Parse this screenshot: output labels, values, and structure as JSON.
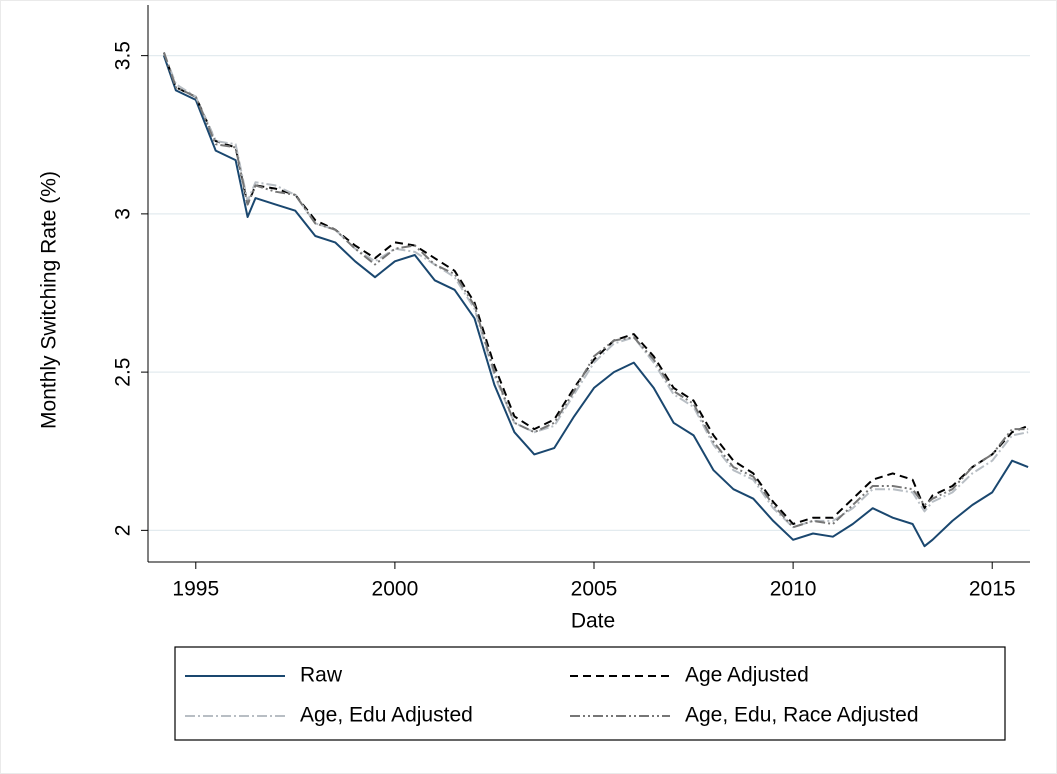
{
  "chart_data": {
    "type": "line",
    "x_label": "Date",
    "y_label": "Monthly Switching Rate (%)",
    "x": [
      1994.2,
      1994.5,
      1995,
      1995.5,
      1996,
      1996.3,
      1996.5,
      1997,
      1997.5,
      1998,
      1998.5,
      1999,
      1999.5,
      2000,
      2000.5,
      2001,
      2001.5,
      2002,
      2002.5,
      2003,
      2003.5,
      2004,
      2004.5,
      2005,
      2005.5,
      2006,
      2006.5,
      2007,
      2007.5,
      2008,
      2008.5,
      2009,
      2009.5,
      2010,
      2010.5,
      2011,
      2011.5,
      2012,
      2012.5,
      2013,
      2013.3,
      2013.5,
      2014,
      2014.5,
      2015,
      2015.5,
      2015.9
    ],
    "series": [
      {
        "name": "Raw",
        "color": "#1a476f",
        "dash": "none",
        "values": [
          3.5,
          3.39,
          3.36,
          3.2,
          3.17,
          2.99,
          3.05,
          3.03,
          3.01,
          2.93,
          2.91,
          2.85,
          2.8,
          2.85,
          2.87,
          2.79,
          2.76,
          2.67,
          2.46,
          2.31,
          2.24,
          2.26,
          2.36,
          2.45,
          2.5,
          2.53,
          2.45,
          2.34,
          2.3,
          2.19,
          2.13,
          2.1,
          2.03,
          1.97,
          1.99,
          1.98,
          2.02,
          2.07,
          2.04,
          2.02,
          1.95,
          1.97,
          2.03,
          2.08,
          2.12,
          2.22,
          2.2
        ]
      },
      {
        "name": "Age Adjusted",
        "color": "#000000",
        "dash": "8 5",
        "values": [
          3.51,
          3.4,
          3.37,
          3.23,
          3.21,
          3.03,
          3.09,
          3.08,
          3.06,
          2.98,
          2.95,
          2.9,
          2.86,
          2.91,
          2.9,
          2.86,
          2.82,
          2.72,
          2.52,
          2.36,
          2.32,
          2.35,
          2.45,
          2.54,
          2.6,
          2.62,
          2.55,
          2.45,
          2.41,
          2.3,
          2.22,
          2.18,
          2.09,
          2.02,
          2.04,
          2.04,
          2.1,
          2.16,
          2.18,
          2.16,
          2.07,
          2.11,
          2.14,
          2.2,
          2.24,
          2.31,
          2.33
        ]
      },
      {
        "name": "Age, Edu Adjusted",
        "color": "#b8bec4",
        "dash": "10 3 2 3",
        "values": [
          3.51,
          3.41,
          3.37,
          3.23,
          3.22,
          3.04,
          3.1,
          3.09,
          3.06,
          2.97,
          2.95,
          2.89,
          2.85,
          2.89,
          2.88,
          2.84,
          2.8,
          2.7,
          2.49,
          2.34,
          2.31,
          2.33,
          2.43,
          2.53,
          2.59,
          2.61,
          2.53,
          2.43,
          2.39,
          2.27,
          2.19,
          2.16,
          2.07,
          2.01,
          2.03,
          2.03,
          2.07,
          2.13,
          2.13,
          2.12,
          2.06,
          2.09,
          2.12,
          2.18,
          2.22,
          2.3,
          2.31
        ]
      },
      {
        "name": "Age, Edu, Race Adjusted",
        "color": "#767676",
        "dash": "10 3 2 3 2 3",
        "values": [
          3.51,
          3.4,
          3.37,
          3.22,
          3.21,
          3.03,
          3.09,
          3.07,
          3.06,
          2.97,
          2.95,
          2.89,
          2.84,
          2.89,
          2.9,
          2.84,
          2.81,
          2.71,
          2.5,
          2.34,
          2.31,
          2.34,
          2.44,
          2.55,
          2.6,
          2.61,
          2.54,
          2.44,
          2.4,
          2.28,
          2.2,
          2.17,
          2.08,
          2.01,
          2.03,
          2.02,
          2.08,
          2.14,
          2.14,
          2.13,
          2.08,
          2.1,
          2.13,
          2.2,
          2.24,
          2.32,
          2.32
        ]
      }
    ],
    "xlim": [
      1993.8,
      2016.2
    ],
    "ylim": [
      1.9,
      3.66
    ],
    "xticks": [
      1995,
      2000,
      2005,
      2010,
      2015
    ],
    "yticks": [
      2,
      2.5,
      3,
      3.5
    ],
    "grid": true
  }
}
